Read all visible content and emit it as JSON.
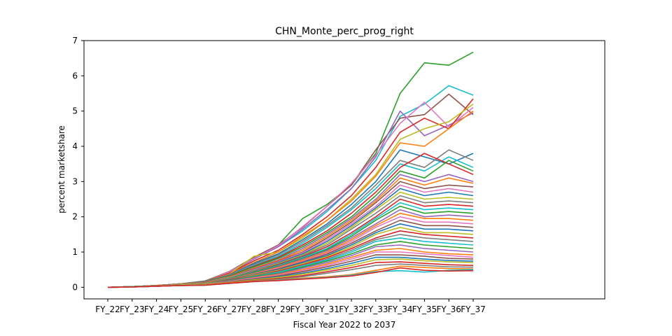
{
  "chart_data": {
    "type": "line",
    "title": "CHN_Monte_perc_prog_right",
    "xlabel": "Fiscal Year 2022 to 2037",
    "ylabel": "percent marketshare",
    "categories": [
      "FY_22",
      "FY_23",
      "FY_24",
      "FY_25",
      "FY_26",
      "FY_27",
      "FY_28",
      "FY_29",
      "FY_30",
      "FY_31",
      "FY_32",
      "FY_33",
      "FY_34",
      "FY_35",
      "FY_36",
      "FY_37"
    ],
    "ylim": [
      -0.33,
      7.0
    ],
    "yticks": [
      "0",
      "1",
      "2",
      "3",
      "4",
      "5",
      "6",
      "7"
    ],
    "grid": false,
    "legend": "none",
    "palette": [
      "#1f77b4",
      "#ff7f0e",
      "#2ca02c",
      "#d62728",
      "#9467bd",
      "#8c564b",
      "#e377c2",
      "#7f7f7f",
      "#bcbd22",
      "#17becf"
    ],
    "series_note_values": "Each series is a Monte Carlo projection; representative envelope and notable series estimated from the plot.",
    "series": [
      {
        "color": "#2ca02c",
        "values": [
          0.0,
          0.02,
          0.05,
          0.1,
          0.18,
          0.45,
          0.85,
          1.2,
          1.95,
          2.35,
          2.9,
          3.8,
          5.5,
          6.37,
          6.3,
          6.67
        ]
      },
      {
        "color": "#17becf",
        "values": [
          0.0,
          0.02,
          0.05,
          0.1,
          0.18,
          0.42,
          0.8,
          1.15,
          1.6,
          2.15,
          2.8,
          3.6,
          4.85,
          5.2,
          5.72,
          5.45
        ]
      },
      {
        "color": "#8c564b",
        "values": [
          0.0,
          0.02,
          0.05,
          0.1,
          0.17,
          0.45,
          0.85,
          1.2,
          1.7,
          2.3,
          2.9,
          3.9,
          4.8,
          4.9,
          5.48,
          4.9
        ]
      },
      {
        "color": "#9467bd",
        "values": [
          0.0,
          0.02,
          0.05,
          0.1,
          0.17,
          0.42,
          0.8,
          1.15,
          1.65,
          2.2,
          2.8,
          3.7,
          5.0,
          4.3,
          4.6,
          4.95
        ]
      },
      {
        "color": "#e377c2",
        "values": [
          0.0,
          0.02,
          0.05,
          0.1,
          0.17,
          0.44,
          0.82,
          1.18,
          1.72,
          2.3,
          2.95,
          3.75,
          4.65,
          5.25,
          4.55,
          5.1
        ]
      },
      {
        "color": "#d62728",
        "values": [
          0.0,
          0.02,
          0.05,
          0.1,
          0.17,
          0.4,
          0.75,
          1.05,
          1.5,
          2.0,
          2.6,
          3.4,
          4.4,
          4.8,
          4.5,
          5.35
        ]
      },
      {
        "color": "#bcbd22",
        "values": [
          0.0,
          0.02,
          0.05,
          0.1,
          0.16,
          0.38,
          0.88,
          1.0,
          1.4,
          1.9,
          2.5,
          3.2,
          4.2,
          4.5,
          4.7,
          5.2
        ]
      },
      {
        "color": "#ff7f0e",
        "values": [
          0.0,
          0.02,
          0.05,
          0.1,
          0.16,
          0.38,
          0.7,
          1.0,
          1.45,
          1.9,
          2.45,
          3.15,
          4.1,
          4.0,
          4.5,
          5.0
        ]
      },
      {
        "color": "#1f77b4",
        "values": [
          0.0,
          0.02,
          0.05,
          0.1,
          0.16,
          0.36,
          0.68,
          0.95,
          1.35,
          1.8,
          2.35,
          3.0,
          3.9,
          3.7,
          3.5,
          3.8
        ]
      },
      {
        "color": "#7f7f7f",
        "values": [
          0.0,
          0.02,
          0.05,
          0.1,
          0.15,
          0.35,
          0.65,
          0.92,
          1.3,
          1.75,
          2.25,
          2.9,
          3.6,
          3.4,
          3.9,
          3.6
        ]
      },
      {
        "color": "#17becf",
        "values": [
          0.0,
          0.02,
          0.05,
          0.1,
          0.15,
          0.34,
          0.62,
          0.88,
          1.25,
          1.7,
          2.2,
          2.8,
          3.5,
          3.3,
          3.7,
          3.4
        ]
      },
      {
        "color": "#d62728",
        "values": [
          0.0,
          0.02,
          0.05,
          0.1,
          0.15,
          0.33,
          0.6,
          0.85,
          1.2,
          1.6,
          2.1,
          2.7,
          3.4,
          3.8,
          3.5,
          3.2
        ]
      },
      {
        "color": "#2ca02c",
        "values": [
          0.0,
          0.02,
          0.05,
          0.1,
          0.15,
          0.32,
          0.58,
          0.82,
          1.15,
          1.55,
          2.0,
          2.6,
          3.3,
          3.1,
          3.6,
          3.3
        ]
      },
      {
        "color": "#9467bd",
        "values": [
          0.0,
          0.02,
          0.05,
          0.1,
          0.14,
          0.3,
          0.55,
          0.78,
          1.1,
          1.5,
          1.95,
          2.5,
          3.2,
          3.0,
          3.2,
          3.0
        ]
      },
      {
        "color": "#ff7f0e",
        "values": [
          0.0,
          0.02,
          0.05,
          0.1,
          0.14,
          0.3,
          0.54,
          0.76,
          1.05,
          1.45,
          1.9,
          2.45,
          3.1,
          2.9,
          3.1,
          2.95
        ]
      },
      {
        "color": "#8c564b",
        "values": [
          0.0,
          0.02,
          0.05,
          0.09,
          0.14,
          0.29,
          0.52,
          0.74,
          1.0,
          1.4,
          1.85,
          2.4,
          3.0,
          2.8,
          2.9,
          2.85
        ]
      },
      {
        "color": "#e377c2",
        "values": [
          0.0,
          0.02,
          0.05,
          0.09,
          0.14,
          0.28,
          0.5,
          0.72,
          0.98,
          1.35,
          1.8,
          2.3,
          2.9,
          2.7,
          2.8,
          2.7
        ]
      },
      {
        "color": "#1f77b4",
        "values": [
          0.0,
          0.02,
          0.05,
          0.09,
          0.13,
          0.27,
          0.48,
          0.7,
          0.95,
          1.3,
          1.75,
          2.25,
          2.8,
          2.6,
          2.7,
          2.6
        ]
      },
      {
        "color": "#bcbd22",
        "values": [
          0.0,
          0.02,
          0.05,
          0.09,
          0.13,
          0.27,
          0.47,
          0.68,
          0.92,
          1.25,
          1.7,
          2.2,
          2.7,
          2.5,
          2.55,
          2.5
        ]
      },
      {
        "color": "#7f7f7f",
        "values": [
          0.0,
          0.02,
          0.05,
          0.09,
          0.13,
          0.26,
          0.46,
          0.66,
          0.9,
          1.2,
          1.65,
          2.1,
          2.6,
          2.4,
          2.45,
          2.4
        ]
      },
      {
        "color": "#d62728",
        "values": [
          0.0,
          0.02,
          0.05,
          0.09,
          0.13,
          0.25,
          0.44,
          0.64,
          0.87,
          1.15,
          1.55,
          2.0,
          2.5,
          2.3,
          2.35,
          2.3
        ]
      },
      {
        "color": "#17becf",
        "values": [
          0.0,
          0.02,
          0.04,
          0.09,
          0.12,
          0.25,
          0.43,
          0.62,
          0.85,
          1.1,
          1.5,
          1.95,
          2.4,
          2.2,
          2.25,
          2.2
        ]
      },
      {
        "color": "#2ca02c",
        "values": [
          0.0,
          0.02,
          0.04,
          0.08,
          0.12,
          0.24,
          0.42,
          0.6,
          0.82,
          1.07,
          1.45,
          1.9,
          2.3,
          2.1,
          2.15,
          2.1
        ]
      },
      {
        "color": "#9467bd",
        "values": [
          0.0,
          0.02,
          0.04,
          0.08,
          0.12,
          0.23,
          0.4,
          0.58,
          0.8,
          1.04,
          1.4,
          1.8,
          2.2,
          2.0,
          2.05,
          2.0
        ]
      },
      {
        "color": "#ff7f0e",
        "values": [
          0.0,
          0.02,
          0.04,
          0.08,
          0.12,
          0.23,
          0.39,
          0.56,
          0.77,
          1.0,
          1.35,
          1.75,
          2.1,
          1.95,
          1.95,
          1.9
        ]
      },
      {
        "color": "#e377c2",
        "values": [
          0.0,
          0.02,
          0.04,
          0.08,
          0.11,
          0.22,
          0.38,
          0.54,
          0.74,
          0.97,
          1.3,
          1.7,
          2.0,
          1.85,
          1.85,
          1.8
        ]
      },
      {
        "color": "#8c564b",
        "values": [
          0.0,
          0.02,
          0.04,
          0.08,
          0.11,
          0.22,
          0.37,
          0.52,
          0.72,
          0.94,
          1.25,
          1.6,
          1.9,
          1.75,
          1.75,
          1.7
        ]
      },
      {
        "color": "#1f77b4",
        "values": [
          0.0,
          0.02,
          0.04,
          0.08,
          0.11,
          0.21,
          0.36,
          0.5,
          0.7,
          0.9,
          1.2,
          1.55,
          1.8,
          1.65,
          1.65,
          1.6
        ]
      },
      {
        "color": "#bcbd22",
        "values": [
          0.0,
          0.02,
          0.04,
          0.08,
          0.11,
          0.2,
          0.35,
          0.48,
          0.67,
          0.87,
          1.15,
          1.5,
          1.7,
          1.55,
          1.55,
          1.5
        ]
      },
      {
        "color": "#d62728",
        "values": [
          0.0,
          0.02,
          0.04,
          0.07,
          0.1,
          0.2,
          0.33,
          0.46,
          0.64,
          0.84,
          1.1,
          1.4,
          1.6,
          1.5,
          1.45,
          1.4
        ]
      },
      {
        "color": "#7f7f7f",
        "values": [
          0.0,
          0.02,
          0.04,
          0.07,
          0.1,
          0.19,
          0.32,
          0.44,
          0.62,
          0.8,
          1.05,
          1.35,
          1.5,
          1.4,
          1.35,
          1.3
        ]
      },
      {
        "color": "#17becf",
        "values": [
          0.0,
          0.02,
          0.04,
          0.07,
          0.1,
          0.18,
          0.31,
          0.42,
          0.6,
          0.77,
          1.0,
          1.3,
          1.4,
          1.3,
          1.25,
          1.2
        ]
      },
      {
        "color": "#2ca02c",
        "values": [
          0.0,
          0.02,
          0.04,
          0.07,
          0.1,
          0.18,
          0.3,
          0.4,
          0.57,
          0.74,
          0.95,
          1.2,
          1.3,
          1.2,
          1.15,
          1.1
        ]
      },
      {
        "color": "#9467bd",
        "values": [
          0.0,
          0.01,
          0.04,
          0.07,
          0.09,
          0.17,
          0.28,
          0.38,
          0.54,
          0.7,
          0.9,
          1.15,
          1.2,
          1.1,
          1.05,
          1.0
        ]
      },
      {
        "color": "#ff7f0e",
        "values": [
          0.0,
          0.01,
          0.04,
          0.07,
          0.09,
          0.16,
          0.27,
          0.36,
          0.5,
          0.66,
          0.85,
          1.05,
          1.1,
          1.0,
          0.95,
          0.92
        ]
      },
      {
        "color": "#e377c2",
        "values": [
          0.0,
          0.01,
          0.03,
          0.06,
          0.09,
          0.16,
          0.26,
          0.34,
          0.47,
          0.62,
          0.8,
          1.0,
          1.0,
          0.95,
          0.9,
          0.85
        ]
      },
      {
        "color": "#8c564b",
        "values": [
          0.0,
          0.01,
          0.03,
          0.06,
          0.08,
          0.15,
          0.24,
          0.32,
          0.44,
          0.58,
          0.74,
          0.92,
          0.92,
          0.88,
          0.82,
          0.8
        ]
      },
      {
        "color": "#1f77b4",
        "values": [
          0.0,
          0.01,
          0.03,
          0.06,
          0.08,
          0.14,
          0.22,
          0.3,
          0.4,
          0.53,
          0.68,
          0.85,
          0.85,
          0.8,
          0.76,
          0.74
        ]
      },
      {
        "color": "#bcbd22",
        "values": [
          0.0,
          0.01,
          0.03,
          0.06,
          0.08,
          0.14,
          0.21,
          0.28,
          0.37,
          0.49,
          0.62,
          0.78,
          0.8,
          0.75,
          0.72,
          0.7
        ]
      },
      {
        "color": "#d62728",
        "values": [
          0.0,
          0.01,
          0.03,
          0.05,
          0.07,
          0.13,
          0.19,
          0.25,
          0.33,
          0.44,
          0.56,
          0.7,
          0.72,
          0.68,
          0.64,
          0.62
        ]
      },
      {
        "color": "#7f7f7f",
        "values": [
          0.0,
          0.01,
          0.03,
          0.05,
          0.07,
          0.12,
          0.18,
          0.23,
          0.3,
          0.4,
          0.5,
          0.62,
          0.66,
          0.62,
          0.58,
          0.57
        ]
      },
      {
        "color": "#ff7f0e",
        "values": [
          0.0,
          0.01,
          0.03,
          0.05,
          0.07,
          0.12,
          0.17,
          0.21,
          0.26,
          0.3,
          0.36,
          0.48,
          0.6,
          0.56,
          0.53,
          0.52
        ]
      },
      {
        "color": "#17becf",
        "values": [
          0.0,
          0.01,
          0.03,
          0.05,
          0.06,
          0.11,
          0.16,
          0.2,
          0.24,
          0.28,
          0.34,
          0.44,
          0.47,
          0.43,
          0.48,
          0.5
        ]
      },
      {
        "color": "#d62728",
        "values": [
          0.0,
          0.01,
          0.03,
          0.05,
          0.06,
          0.11,
          0.16,
          0.19,
          0.23,
          0.27,
          0.32,
          0.42,
          0.55,
          0.48,
          0.46,
          0.47
        ]
      }
    ]
  }
}
